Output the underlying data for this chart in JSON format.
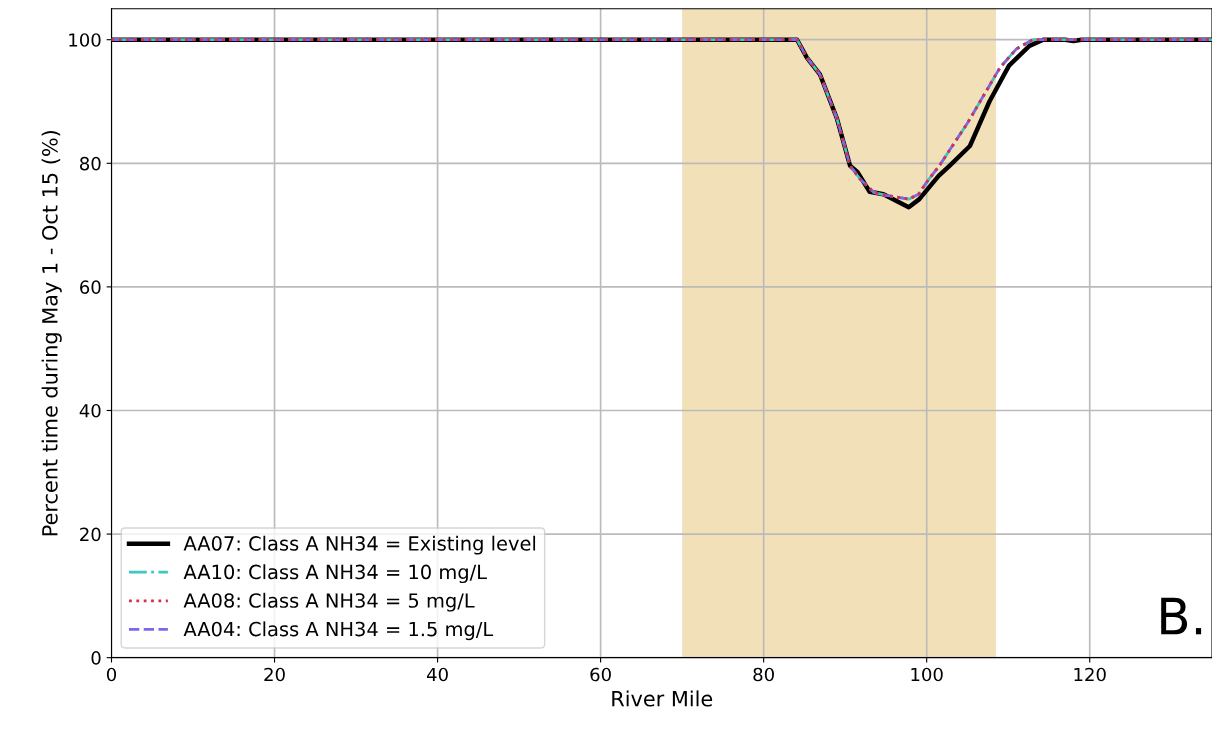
{
  "chart_data": {
    "type": "line",
    "xlabel": "River Mile",
    "ylabel": "Percent time during May 1 - Oct 15 (%)",
    "xlim": [
      0,
      135
    ],
    "xticks": [
      0,
      20,
      40,
      60,
      80,
      100,
      120
    ],
    "ylim": [
      0,
      105
    ],
    "yticks": [
      0,
      20,
      40,
      60,
      80,
      100
    ],
    "grid": true,
    "legend": "bottom left",
    "bands": [
      {
        "axis": "x",
        "from": 70,
        "to": 108.5,
        "color": "#f2e0b8"
      }
    ],
    "annotations": [
      "B."
    ],
    "series": [
      {
        "name": "AA07: Class A NH34 = Existing level",
        "color": "#000000",
        "line_style": "solid",
        "x": [
          0,
          84.1,
          85.3,
          86.9,
          89.0,
          90.6,
          91.5,
          93.0,
          94.7,
          96.3,
          97.8,
          99.1,
          100.8,
          101.5,
          102.8,
          105.3,
          107.7,
          110.1,
          112.6,
          114.3,
          117,
          118,
          119,
          135
        ],
        "values": [
          100,
          100,
          97.1,
          94.4,
          87.2,
          79.6,
          78.6,
          75.4,
          75.0,
          73.9,
          72.9,
          74.2,
          76.9,
          78,
          79.6,
          82.8,
          90,
          95.8,
          99,
          100,
          100,
          99.8,
          100,
          100
        ]
      },
      {
        "name": "AA10: Class A NH34 = 10 mg/L",
        "color": "#3cc8c0",
        "line_style": "dashdot",
        "x": [
          0,
          84.1,
          85.3,
          86.9,
          89.0,
          90.6,
          91.8,
          93.5,
          95.0,
          96.5,
          97.8,
          99.0,
          100.3,
          101.5,
          103.0,
          105.0,
          107.0,
          109.0,
          111.0,
          113.0,
          135
        ],
        "values": [
          100,
          100,
          97.1,
          94.4,
          87.2,
          79.6,
          77.5,
          75.3,
          74.8,
          74.5,
          74.2,
          75,
          77.5,
          79.5,
          82.5,
          86.5,
          91,
          95.5,
          98.5,
          100,
          100
        ]
      },
      {
        "name": "AA08: Class A NH34 = 5 mg/L",
        "color": "#d62f4a",
        "line_style": "dotted",
        "x": [
          0,
          84.1,
          85.3,
          86.9,
          89.0,
          90.6,
          91.8,
          93.5,
          95.0,
          96.5,
          97.8,
          99.0,
          100.3,
          101.5,
          103.0,
          105.0,
          107.0,
          109.0,
          111.0,
          113.0,
          135
        ],
        "values": [
          100,
          100,
          97.1,
          94.4,
          87.2,
          79.6,
          77.5,
          75.3,
          74.8,
          74.5,
          74.2,
          75,
          77.5,
          79.5,
          82.5,
          86.5,
          91,
          95.5,
          98.5,
          100,
          100
        ]
      },
      {
        "name": "AA04: Class A NH34 = 1.5 mg/L",
        "color": "#7b68ee",
        "line_style": "dashed",
        "x": [
          0,
          84.1,
          85.3,
          86.9,
          89.0,
          90.6,
          91.8,
          93.5,
          95.0,
          96.5,
          97.8,
          99.0,
          100.3,
          101.5,
          103.0,
          105.0,
          107.0,
          109.0,
          111.0,
          113.0,
          135
        ],
        "values": [
          100,
          100,
          97.1,
          94.4,
          87.2,
          79.6,
          77.5,
          75.3,
          74.8,
          74.5,
          74.2,
          75,
          77.5,
          79.5,
          82.5,
          86.5,
          91,
          95.5,
          98.5,
          100,
          100
        ]
      }
    ]
  }
}
